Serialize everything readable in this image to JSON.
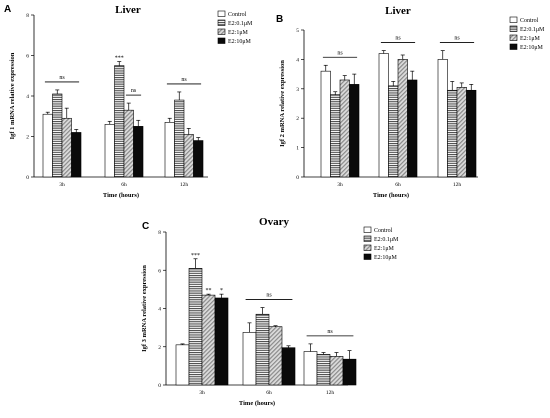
{
  "chart_data": [
    {
      "panel": "A",
      "type": "bar",
      "title": "Liver",
      "xlabel": "Time (hours)",
      "ylabel": "Igf 1 mRNA relative expression",
      "categories": [
        "3h",
        "6h",
        "12h"
      ],
      "ylim": [
        0,
        8
      ],
      "yticks": [
        "0",
        "2",
        "4",
        "6",
        "8"
      ],
      "series": [
        {
          "name": "Control",
          "values": [
            3.1,
            2.6,
            2.7
          ],
          "errors": [
            0.1,
            0.15,
            0.2
          ]
        },
        {
          "name": "E2:0.1μM",
          "values": [
            4.1,
            5.5,
            3.8
          ],
          "errors": [
            0.2,
            0.2,
            0.4
          ]
        },
        {
          "name": "E2:1μM",
          "values": [
            2.9,
            3.3,
            2.1
          ],
          "errors": [
            0.5,
            0.35,
            0.3
          ]
        },
        {
          "name": "E2:10μM",
          "values": [
            2.2,
            2.5,
            1.8
          ],
          "errors": [
            0.15,
            0.3,
            0.15
          ]
        }
      ],
      "annotations": [
        {
          "text": "ns",
          "category": "3h",
          "bracket": [
            0,
            3
          ]
        },
        {
          "text": "***",
          "category": "6h",
          "series": 1
        },
        {
          "text": "ns",
          "category": "6h",
          "bracket": [
            2,
            3
          ]
        },
        {
          "text": "ns",
          "category": "12h",
          "bracket": [
            0,
            3
          ]
        }
      ]
    },
    {
      "panel": "B",
      "type": "bar",
      "title": "Liver",
      "xlabel": "Time (hours)",
      "ylabel": "Igf 2 mRNA relative expression",
      "categories": [
        "3h",
        "6h",
        "12h"
      ],
      "ylim": [
        0,
        5
      ],
      "yticks": [
        "0",
        "1",
        "2",
        "3",
        "4",
        "5"
      ],
      "series": [
        {
          "name": "Control",
          "values": [
            3.6,
            4.2,
            4.0
          ],
          "errors": [
            0.2,
            0.1,
            0.3
          ]
        },
        {
          "name": "E2:0.1μM",
          "values": [
            2.8,
            3.1,
            2.95
          ],
          "errors": [
            0.1,
            0.15,
            0.3
          ]
        },
        {
          "name": "E2:1μM",
          "values": [
            3.3,
            4.0,
            3.05
          ],
          "errors": [
            0.15,
            0.15,
            0.15
          ]
        },
        {
          "name": "E2:10μM",
          "values": [
            3.15,
            3.3,
            2.95
          ],
          "errors": [
            0.35,
            0.3,
            0.2
          ]
        }
      ],
      "annotations": [
        {
          "text": "ns",
          "category": "3h",
          "bracket": [
            0,
            3
          ]
        },
        {
          "text": "ns",
          "category": "6h",
          "bracket": [
            0,
            3
          ]
        },
        {
          "text": "ns",
          "category": "12h",
          "bracket": [
            0,
            3
          ]
        }
      ]
    },
    {
      "panel": "C",
      "type": "bar",
      "title": "Ovary",
      "xlabel": "Time (hours)",
      "ylabel": "Igf 3 mRNA relative expression",
      "categories": [
        "3h",
        "6h",
        "12h"
      ],
      "ylim": [
        0,
        8
      ],
      "yticks": [
        "0",
        "2",
        "4",
        "6",
        "8"
      ],
      "series": [
        {
          "name": "Control",
          "values": [
            2.1,
            2.75,
            1.75
          ],
          "errors": [
            0.05,
            0.5,
            0.4
          ]
        },
        {
          "name": "E2:0.1μM",
          "values": [
            6.1,
            3.7,
            1.6
          ],
          "errors": [
            0.5,
            0.35,
            0.1
          ]
        },
        {
          "name": "E2:1μM",
          "values": [
            4.7,
            3.05,
            1.5
          ],
          "errors": [
            0.05,
            0.05,
            0.2
          ]
        },
        {
          "name": "E2:10μM",
          "values": [
            4.55,
            1.95,
            1.35
          ],
          "errors": [
            0.2,
            0.1,
            0.45
          ]
        }
      ],
      "annotations": [
        {
          "text": "***",
          "category": "3h",
          "series": 1
        },
        {
          "text": "**",
          "category": "3h",
          "series": 2
        },
        {
          "text": "*",
          "category": "3h",
          "series": 3
        },
        {
          "text": "ns",
          "category": "6h",
          "bracket": [
            0,
            3
          ]
        },
        {
          "text": "ns",
          "category": "12h",
          "bracket": [
            0,
            3
          ]
        }
      ]
    }
  ]
}
